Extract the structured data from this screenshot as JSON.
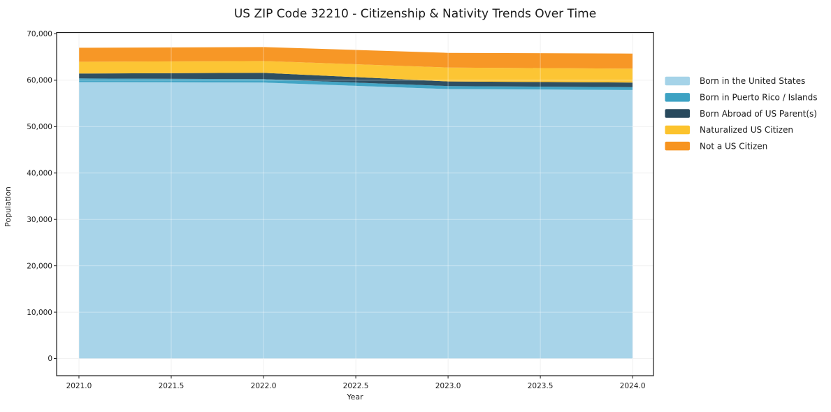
{
  "title": "US ZIP Code 32210 - Citizenship & Nativity Trends Over Time",
  "axes": {
    "xlabel": "Year",
    "ylabel": "Population"
  },
  "chart_data": {
    "type": "area",
    "stacked": true,
    "title": "US ZIP Code 32210 - Citizenship & Nativity Trends Over Time",
    "xlabel": "Year",
    "ylabel": "Population",
    "x": [
      2021,
      2022,
      2023,
      2024
    ],
    "series": [
      {
        "name": "Born in the United States",
        "color": "#a5d3e8",
        "values": [
          59600,
          59500,
          58100,
          57900
        ]
      },
      {
        "name": "Born in Puerto Rico / Islands",
        "color": "#3da2c3",
        "values": [
          800,
          750,
          650,
          600
        ]
      },
      {
        "name": "Born Abroad of US Parent(s)",
        "color": "#28495d",
        "values": [
          1050,
          1350,
          1000,
          1000
        ]
      },
      {
        "name": "Naturalized US Citizen",
        "color": "#fcc32d",
        "values": [
          2550,
          2550,
          3000,
          3000
        ]
      },
      {
        "name": "Not a US Citizen",
        "color": "#f7941f",
        "values": [
          3000,
          3000,
          3150,
          3250
        ]
      }
    ],
    "totals_by_year": [
      67000,
      67150,
      65900,
      65750
    ],
    "xlim": [
      2020.879,
      2024.113
    ],
    "ylim": [
      -3688,
      70301
    ],
    "x_ticks": [
      2021.0,
      2021.5,
      2022.0,
      2022.5,
      2023.0,
      2023.5,
      2024.0
    ],
    "x_tick_labels": [
      "2021.0",
      "2021.5",
      "2022.0",
      "2022.5",
      "2023.0",
      "2023.5",
      "2024.0"
    ],
    "y_ticks": [
      0,
      10000,
      20000,
      30000,
      40000,
      50000,
      60000,
      70000
    ],
    "y_tick_labels": [
      "0",
      "10,000",
      "20,000",
      "30,000",
      "40,000",
      "50,000",
      "60,000",
      "70,000"
    ],
    "grid": true,
    "legend_position": "right-outside",
    "legend_entries": [
      "Born in the United States",
      "Born in Puerto Rico / Islands",
      "Born Abroad of US Parent(s)",
      "Naturalized US Citizen",
      "Not a US Citizen"
    ]
  }
}
